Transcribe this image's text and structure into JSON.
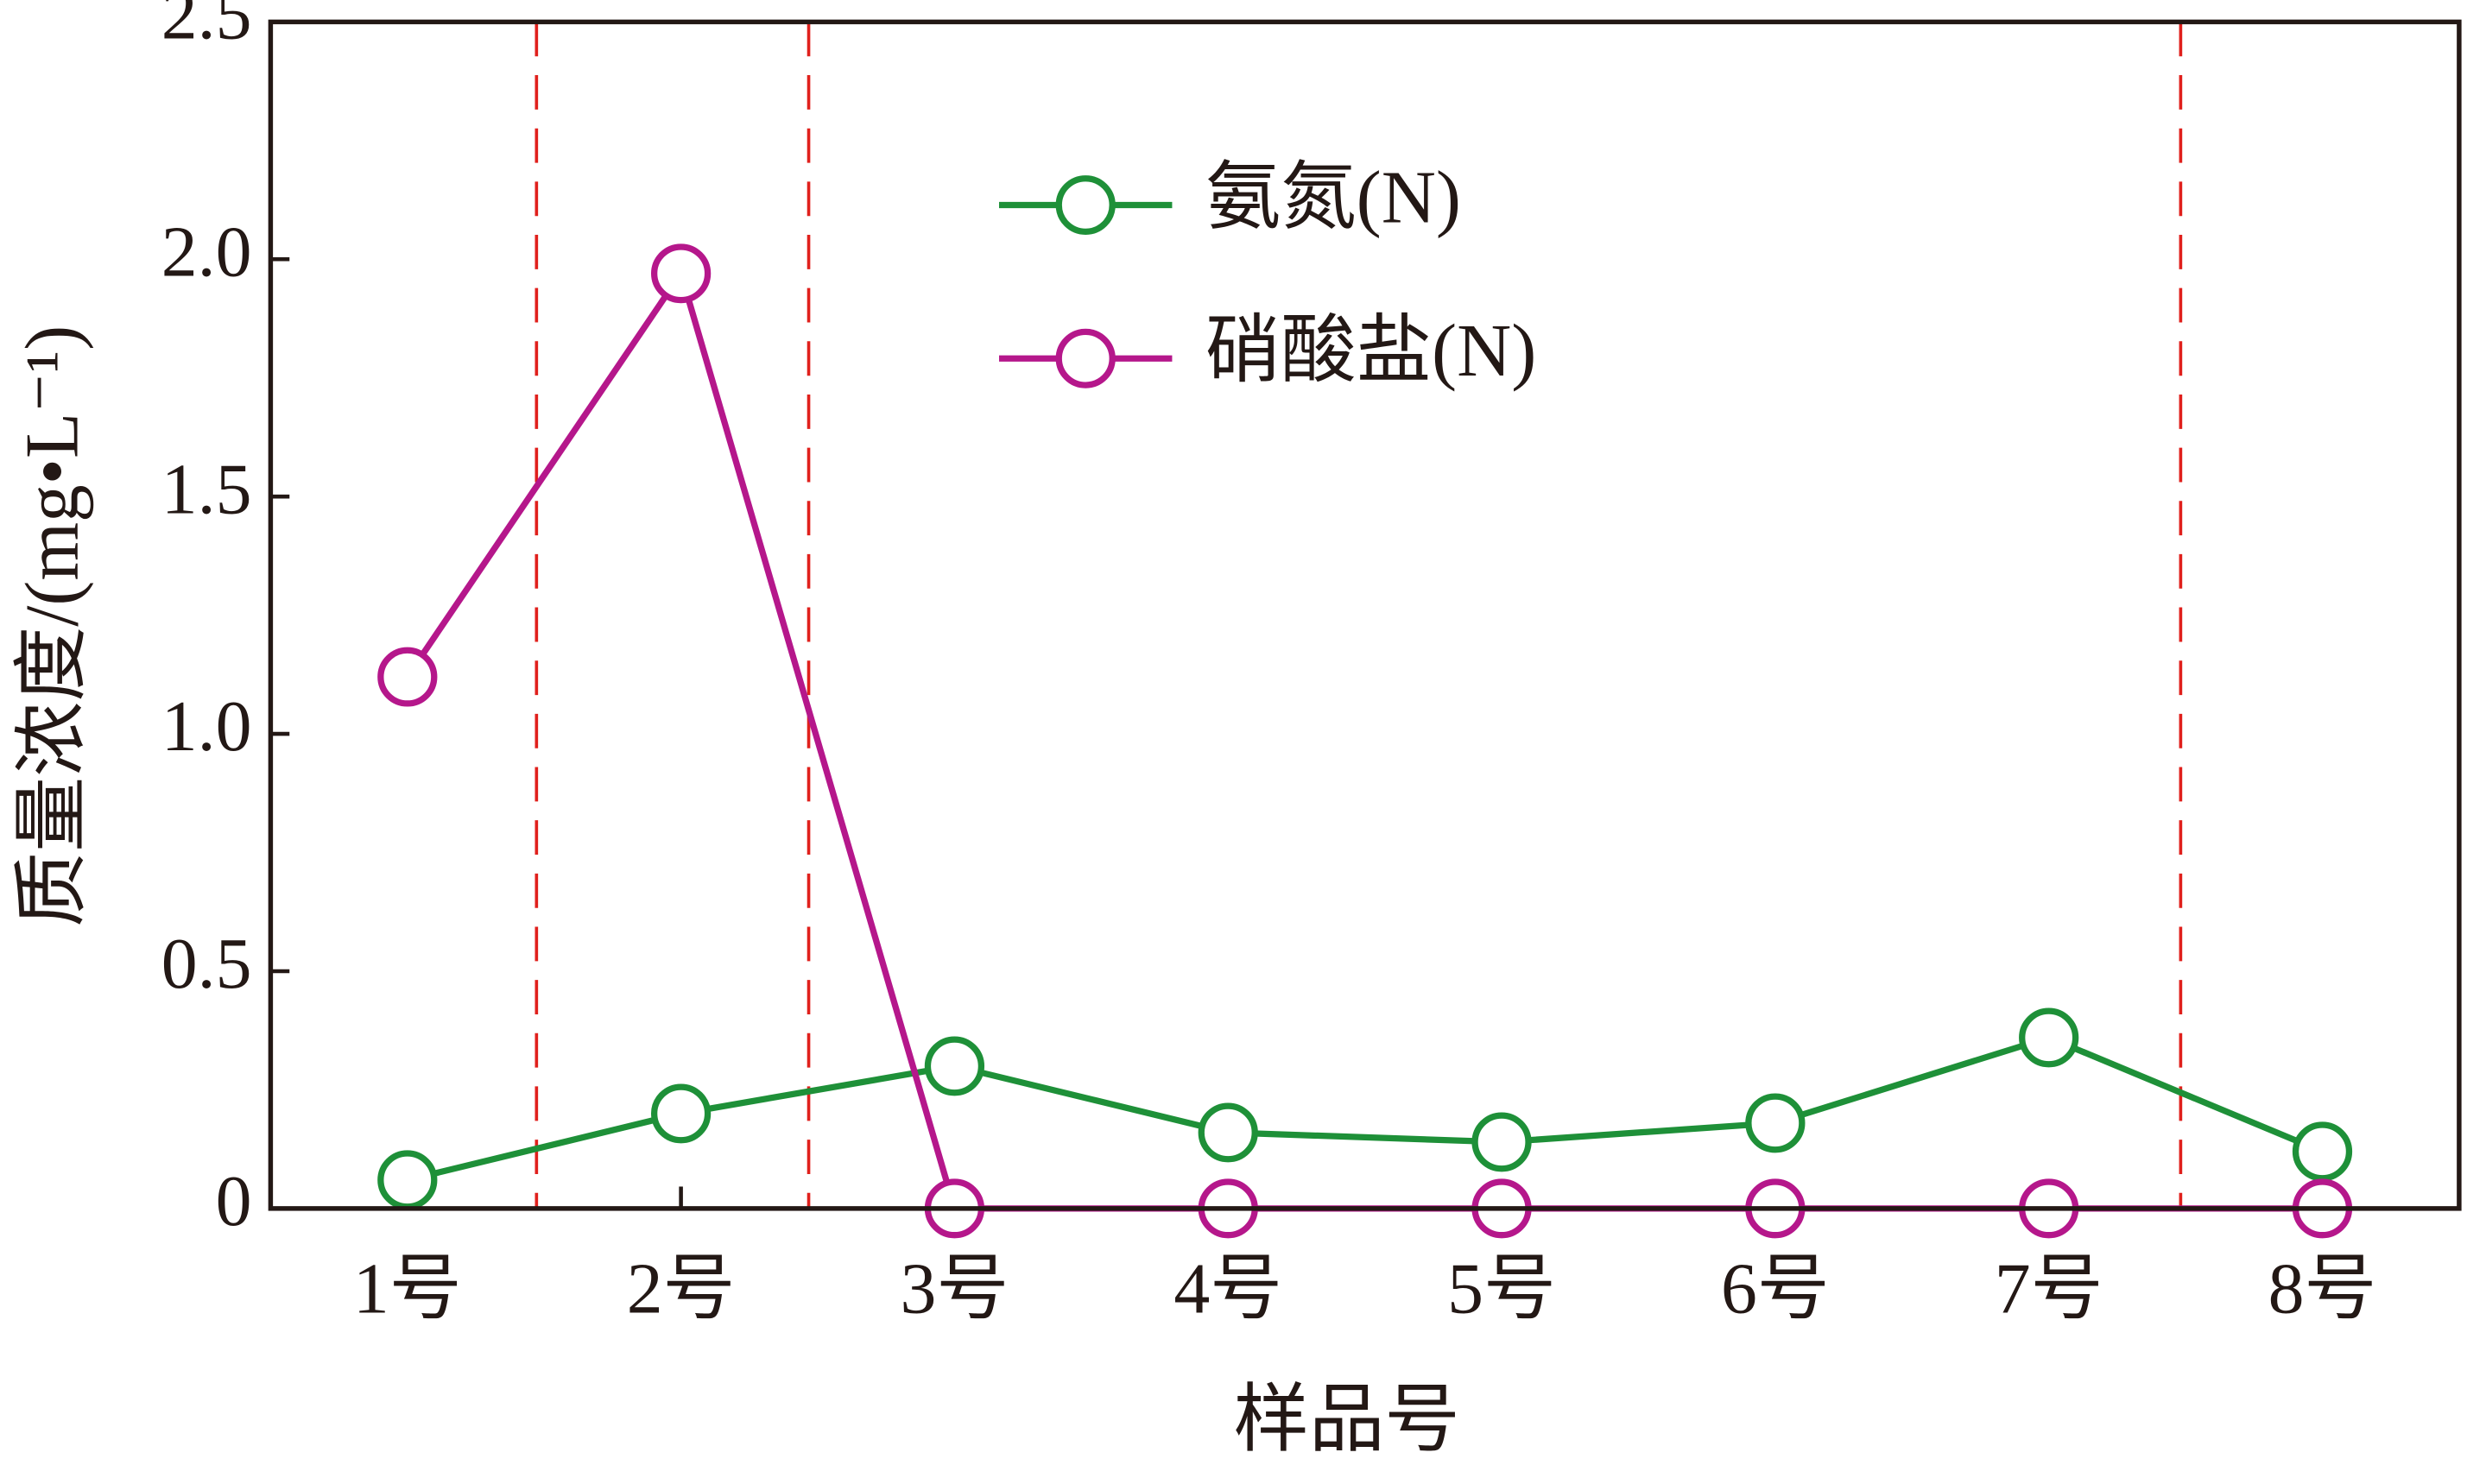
{
  "chart_data": {
    "type": "line",
    "xlabel": "样品号",
    "ylabel": "质量浓度/(mg•L⁻¹)",
    "categories": [
      "1号",
      "2号",
      "3号",
      "4号",
      "5号",
      "6号",
      "7号",
      "8号"
    ],
    "series": [
      {
        "name": "氨氮(N)",
        "color": "#1e9038",
        "values": [
          0.06,
          0.2,
          0.3,
          0.16,
          0.14,
          0.18,
          0.36,
          0.12
        ]
      },
      {
        "name": "硝酸盐(N)",
        "color": "#b5178b",
        "values": [
          1.12,
          1.97,
          0,
          0,
          0,
          0,
          0,
          0
        ]
      }
    ],
    "ylim": [
      0,
      2.5
    ],
    "yticks": [
      0,
      0.5,
      {
        "value": 1,
        "label": "1.0"
      },
      1.5,
      {
        "value": 2,
        "label": "2.0"
      },
      2.5
    ],
    "legend": "upper center"
  }
}
